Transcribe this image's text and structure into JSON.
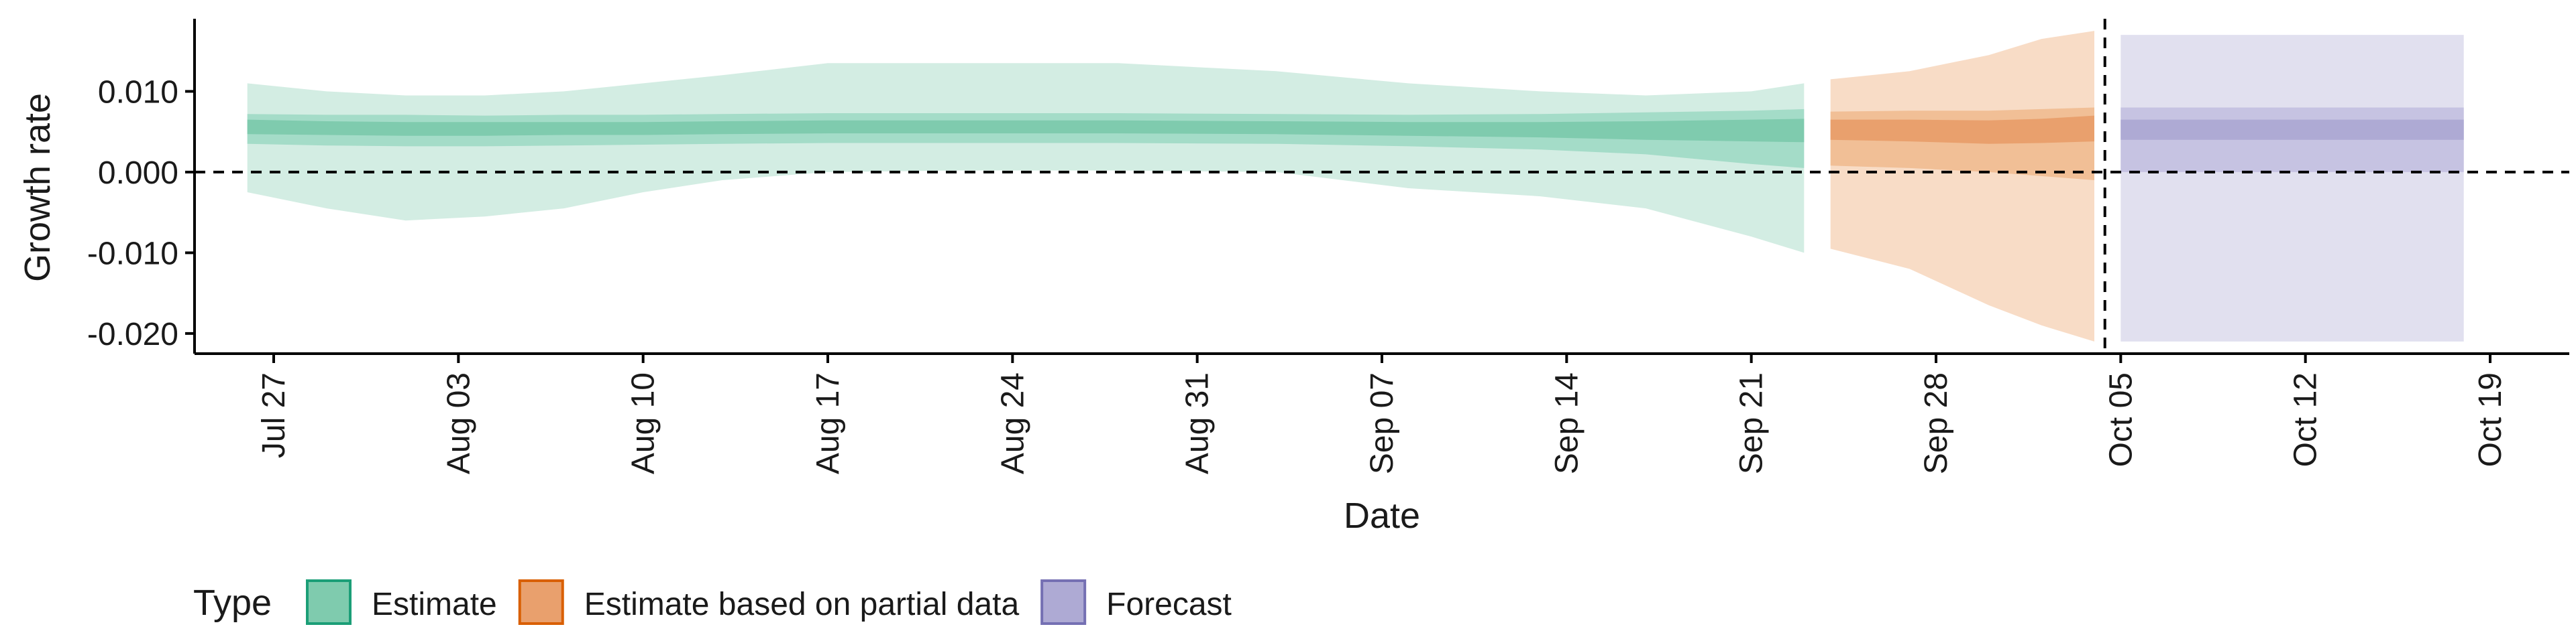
{
  "chart_data": {
    "type": "area",
    "xlabel": "Date",
    "ylabel": "Growth rate",
    "x_ticks": [
      "Jul 27",
      "Aug 03",
      "Aug 10",
      "Aug 17",
      "Aug 24",
      "Aug 31",
      "Sep 07",
      "Sep 14",
      "Sep 21",
      "Sep 28",
      "Oct 05",
      "Oct 12",
      "Oct 19"
    ],
    "y_ticks": [
      "-0.020",
      "-0.010",
      "0.000",
      "0.010"
    ],
    "ylim": [
      -0.0225,
      0.019
    ],
    "x_range": [
      "2020-07-24",
      "2020-10-22"
    ],
    "reference_line_y": 0.0,
    "vertical_line_x": "2020-10-04",
    "grid": false,
    "legend": {
      "title": "Type",
      "position": "bottom-left",
      "items": [
        {
          "label": "Estimate",
          "fill": "#7fcbae",
          "stroke": "#1b9e77"
        },
        {
          "label": "Estimate based on partial data",
          "fill": "#e9a06d",
          "stroke": "#d95f02"
        },
        {
          "label": "Forecast",
          "fill": "#aeaad4",
          "stroke": "#7570b3"
        }
      ]
    },
    "colors": {
      "estimate_outer": "#d3ede3",
      "estimate_mid": "#a4dcc8",
      "estimate_inner": "#7fcbae",
      "partial_outer": "#f8dcc6",
      "partial_mid": "#f1bf96",
      "partial_inner": "#e9a06d",
      "forecast_outer": "#e1e0ef",
      "forecast_mid": "#c6c3e2",
      "forecast_inner": "#aeaad4"
    },
    "series": [
      {
        "name": "Estimate",
        "points": [
          {
            "x": "2020-07-26",
            "lo90": -0.0025,
            "lo50": 0.0035,
            "lo20": 0.0047,
            "hi20": 0.0065,
            "hi50": 0.0072,
            "hi90": 0.011
          },
          {
            "x": "2020-07-29",
            "lo90": -0.0045,
            "lo50": 0.0033,
            "lo20": 0.0046,
            "hi20": 0.0063,
            "hi50": 0.0071,
            "hi90": 0.01
          },
          {
            "x": "2020-08-01",
            "lo90": -0.006,
            "lo50": 0.0032,
            "lo20": 0.0045,
            "hi20": 0.0062,
            "hi50": 0.0071,
            "hi90": 0.0095
          },
          {
            "x": "2020-08-04",
            "lo90": -0.0055,
            "lo50": 0.0032,
            "lo20": 0.0045,
            "hi20": 0.0062,
            "hi50": 0.007,
            "hi90": 0.0095
          },
          {
            "x": "2020-08-07",
            "lo90": -0.0045,
            "lo50": 0.0033,
            "lo20": 0.0046,
            "hi20": 0.0062,
            "hi50": 0.0071,
            "hi90": 0.01
          },
          {
            "x": "2020-08-10",
            "lo90": -0.0025,
            "lo50": 0.0034,
            "lo20": 0.0046,
            "hi20": 0.0062,
            "hi50": 0.0071,
            "hi90": 0.011
          },
          {
            "x": "2020-08-13",
            "lo90": -0.001,
            "lo50": 0.0035,
            "lo20": 0.0047,
            "hi20": 0.0063,
            "hi50": 0.0072,
            "hi90": 0.012
          },
          {
            "x": "2020-08-17",
            "lo90": 0.0,
            "lo50": 0.0036,
            "lo20": 0.0048,
            "hi20": 0.0064,
            "hi50": 0.0073,
            "hi90": 0.0135
          },
          {
            "x": "2020-08-22",
            "lo90": 0.0002,
            "lo50": 0.0036,
            "lo20": 0.0048,
            "hi20": 0.0064,
            "hi50": 0.0073,
            "hi90": 0.0135
          },
          {
            "x": "2020-08-28",
            "lo90": 0.0002,
            "lo50": 0.0036,
            "lo20": 0.0048,
            "hi20": 0.0064,
            "hi50": 0.0073,
            "hi90": 0.0135
          },
          {
            "x": "2020-09-03",
            "lo90": 0.0,
            "lo50": 0.0035,
            "lo20": 0.0047,
            "hi20": 0.0063,
            "hi50": 0.0072,
            "hi90": 0.0125
          },
          {
            "x": "2020-09-08",
            "lo90": -0.002,
            "lo50": 0.0032,
            "lo20": 0.0045,
            "hi20": 0.0062,
            "hi50": 0.0071,
            "hi90": 0.011
          },
          {
            "x": "2020-09-13",
            "lo90": -0.003,
            "lo50": 0.0028,
            "lo20": 0.0043,
            "hi20": 0.0062,
            "hi50": 0.0072,
            "hi90": 0.01
          },
          {
            "x": "2020-09-17",
            "lo90": -0.0045,
            "lo50": 0.0022,
            "lo20": 0.004,
            "hi20": 0.0063,
            "hi50": 0.0074,
            "hi90": 0.0095
          },
          {
            "x": "2020-09-21",
            "lo90": -0.008,
            "lo50": 0.001,
            "lo20": 0.0038,
            "hi20": 0.0065,
            "hi50": 0.0076,
            "hi90": 0.01
          },
          {
            "x": "2020-09-23",
            "lo90": -0.01,
            "lo50": 0.0005,
            "lo20": 0.0037,
            "hi20": 0.0066,
            "hi50": 0.0078,
            "hi90": 0.011
          }
        ]
      },
      {
        "name": "Estimate based on partial data",
        "points": [
          {
            "x": "2020-09-24",
            "lo90": -0.0095,
            "lo50": 0.0008,
            "lo20": 0.004,
            "hi20": 0.0065,
            "hi50": 0.0075,
            "hi90": 0.0115
          },
          {
            "x": "2020-09-27",
            "lo90": -0.012,
            "lo50": 0.0005,
            "lo20": 0.0038,
            "hi20": 0.0065,
            "hi50": 0.0076,
            "hi90": 0.0125
          },
          {
            "x": "2020-09-30",
            "lo90": -0.0165,
            "lo50": 0.0,
            "lo20": 0.0035,
            "hi20": 0.0064,
            "hi50": 0.0076,
            "hi90": 0.0145
          },
          {
            "x": "2020-10-02",
            "lo90": -0.019,
            "lo50": -0.0005,
            "lo20": 0.0036,
            "hi20": 0.0066,
            "hi50": 0.0078,
            "hi90": 0.0165
          },
          {
            "x": "2020-10-04",
            "lo90": -0.021,
            "lo50": -0.001,
            "lo20": 0.0038,
            "hi20": 0.007,
            "hi50": 0.008,
            "hi90": 0.0175
          }
        ]
      },
      {
        "name": "Forecast",
        "points": [
          {
            "x": "2020-10-05",
            "lo90": -0.021,
            "lo50": 0.0,
            "lo20": 0.004,
            "hi20": 0.0065,
            "hi50": 0.008,
            "hi90": 0.017
          },
          {
            "x": "2020-10-18",
            "lo90": -0.021,
            "lo50": 0.0,
            "lo20": 0.004,
            "hi20": 0.0065,
            "hi50": 0.008,
            "hi90": 0.017
          }
        ]
      }
    ]
  }
}
